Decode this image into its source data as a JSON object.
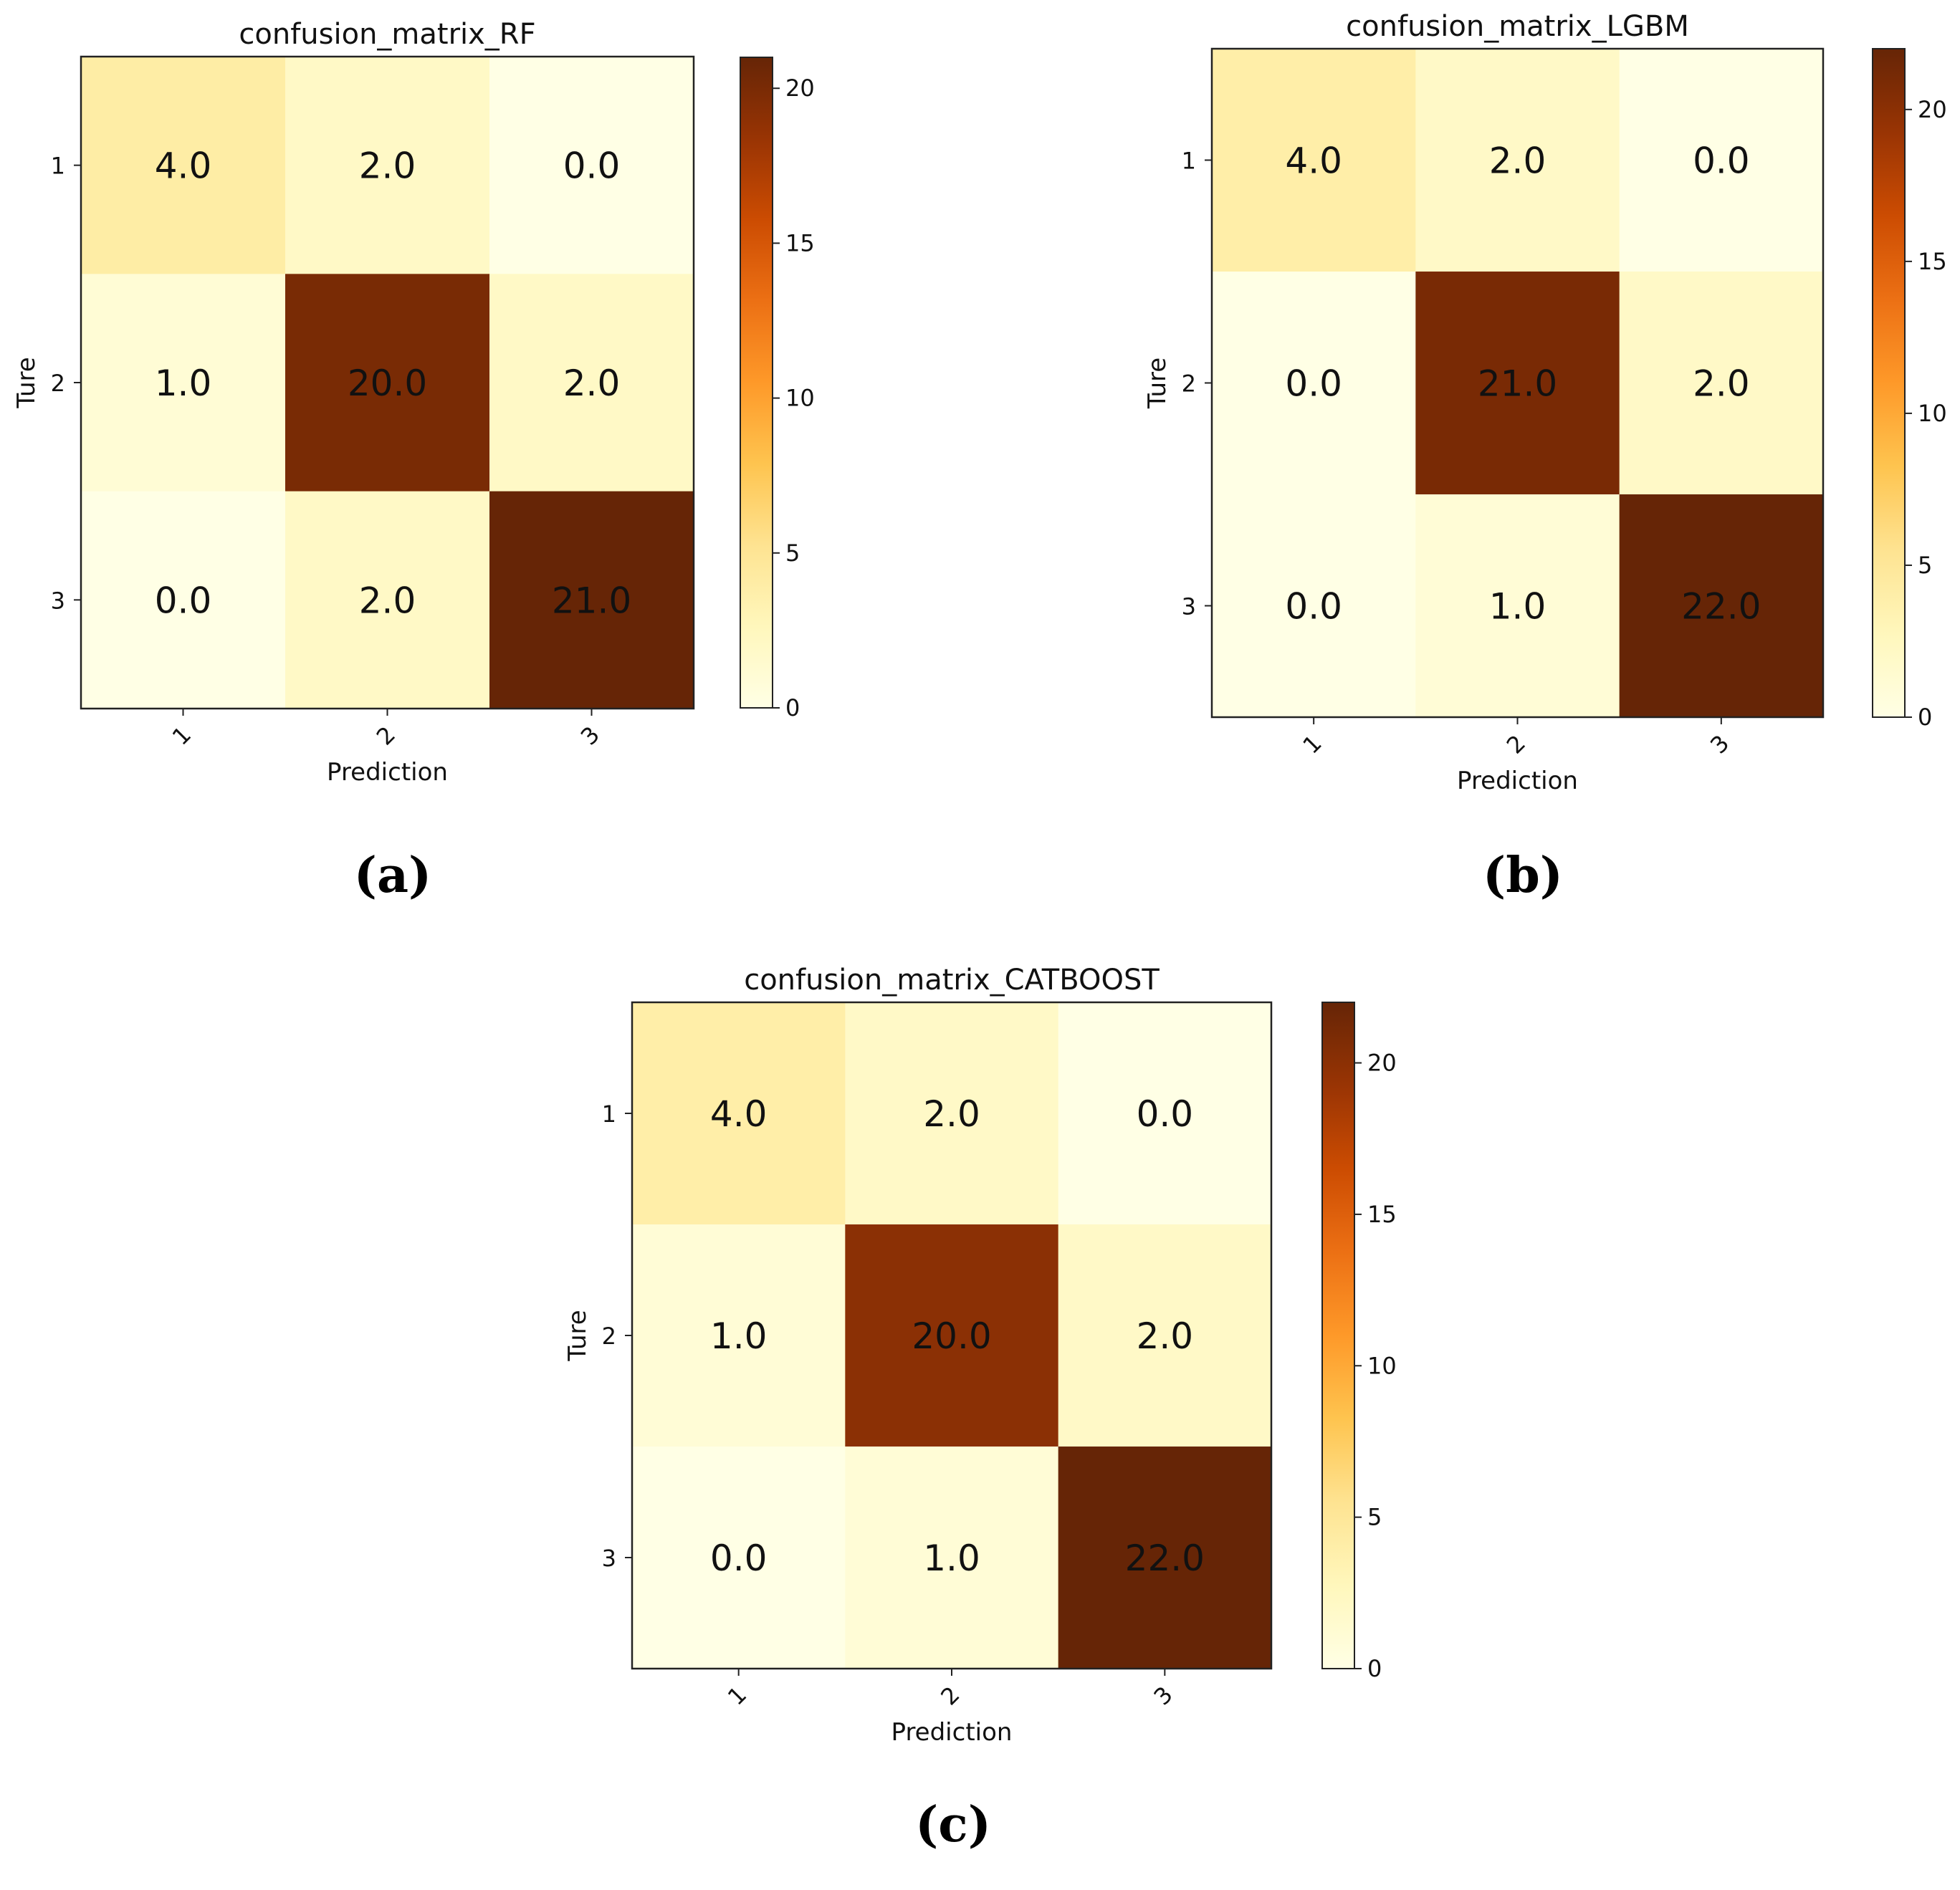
{
  "chart_data": [
    {
      "type": "heatmap",
      "panel_label": "(a)",
      "title": "confusion_matrix_RF",
      "xlabel": "Prediction",
      "ylabel": "Ture",
      "x_categories": [
        "1",
        "2",
        "3"
      ],
      "y_categories": [
        "1",
        "2",
        "3"
      ],
      "values": [
        [
          4.0,
          2.0,
          0.0
        ],
        [
          1.0,
          20.0,
          2.0
        ],
        [
          0.0,
          2.0,
          21.0
        ]
      ],
      "cell_labels": [
        [
          "4.0",
          "2.0",
          "0.0"
        ],
        [
          "1.0",
          "20.0",
          "2.0"
        ],
        [
          "0.0",
          "2.0",
          "21.0"
        ]
      ],
      "colorbar": {
        "range": [
          0,
          21
        ],
        "ticks": [
          0,
          5,
          10,
          15,
          20
        ],
        "colormap": "YlOrBr"
      }
    },
    {
      "type": "heatmap",
      "panel_label": "(b)",
      "title": "confusion_matrix_LGBM",
      "xlabel": "Prediction",
      "ylabel": "Ture",
      "x_categories": [
        "1",
        "2",
        "3"
      ],
      "y_categories": [
        "1",
        "2",
        "3"
      ],
      "values": [
        [
          4.0,
          2.0,
          0.0
        ],
        [
          0.0,
          21.0,
          2.0
        ],
        [
          0.0,
          1.0,
          22.0
        ]
      ],
      "cell_labels": [
        [
          "4.0",
          "2.0",
          "0.0"
        ],
        [
          "0.0",
          "21.0",
          "2.0"
        ],
        [
          "0.0",
          "1.0",
          "22.0"
        ]
      ],
      "colorbar": {
        "range": [
          0,
          22
        ],
        "ticks": [
          0,
          5,
          10,
          15,
          20
        ],
        "colormap": "YlOrBr"
      }
    },
    {
      "type": "heatmap",
      "panel_label": "(c)",
      "title": "confusion_matrix_CATBOOST",
      "xlabel": "Prediction",
      "ylabel": "Ture",
      "x_categories": [
        "1",
        "2",
        "3"
      ],
      "y_categories": [
        "1",
        "2",
        "3"
      ],
      "values": [
        [
          4.0,
          2.0,
          0.0
        ],
        [
          1.0,
          20.0,
          2.0
        ],
        [
          0.0,
          1.0,
          22.0
        ]
      ],
      "cell_labels": [
        [
          "4.0",
          "2.0",
          "0.0"
        ],
        [
          "1.0",
          "20.0",
          "2.0"
        ],
        [
          "0.0",
          "1.0",
          "22.0"
        ]
      ],
      "colorbar": {
        "range": [
          0,
          22
        ],
        "ticks": [
          0,
          5,
          10,
          15,
          20
        ],
        "colormap": "YlOrBr"
      }
    }
  ],
  "colormap_stops": [
    "#ffffe5",
    "#fff7bc",
    "#fee391",
    "#fec44f",
    "#fe9929",
    "#ec7014",
    "#cc4c02",
    "#993404",
    "#662506"
  ]
}
